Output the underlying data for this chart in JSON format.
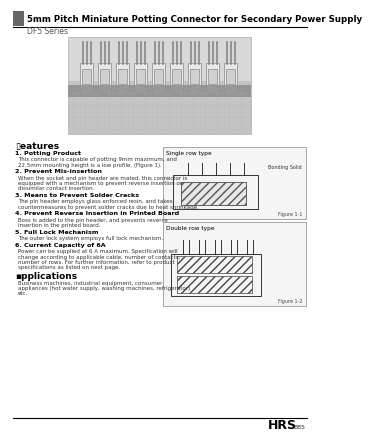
{
  "title": "5mm Pitch Miniature Potting Connector for Secondary Power Supply",
  "series": "DF5 Series",
  "bg_color": "#ffffff",
  "header_bar_color": "#666666",
  "title_fontsize": 6.2,
  "series_fontsize": 5.5,
  "features_title": "▯eatures",
  "features": [
    [
      "1. Potting Product",
      "This connector is capable of potting 9mm maximum, and\n22.5mm mounting height is a low profile. (Figure 1)."
    ],
    [
      "2. Prevent Mis-insertion",
      "When the socket and pin header are mated, this connector is\nequipped with a mechanism to prevent reverse insertion or\ndissimilar contact insertion."
    ],
    [
      "3. Means to Prevent Solder Cracks",
      "The pin header employs glass enforced resin, and takes\ncountermeasures to prevent solder cracks due to heat shrinkage."
    ],
    [
      "4. Prevent Reverse Insertion in Printed Board",
      "Boss is added to the pin header, and prevents reverse\ninsertion in the printed board."
    ],
    [
      "5. Full Lock Mechanism",
      "The outer lock system employs full lock mechanism."
    ],
    [
      "6. Current Capacity of 6A",
      "Power can be supplied at 6 A maximum. Specification will\nchange according to applicable cable, number of contacts,\nnumber of rows. For further information, refer to product\nspecifications as listed on next page."
    ]
  ],
  "applications_title": "▪pplications",
  "applications_text": "Business machines, industrial equipment, consumer\nappliances (hot water supply, washing machines, refrigerator)\netc.",
  "footer_text": "HRS",
  "footer_subtext": "B85",
  "single_row_label": "Single row type",
  "double_row_label": "Double row type",
  "fig1_label": "Figure 1-1",
  "fig2_label": "Figure 1-2",
  "bonding_label": "Bonding Solid"
}
